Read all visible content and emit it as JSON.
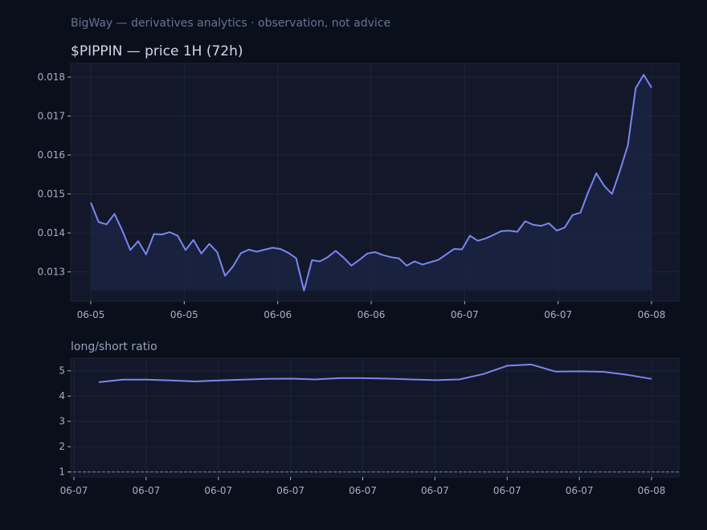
{
  "page_header": "BigWay — derivatives analytics · observation, not advice",
  "colors": {
    "background": "#0a0f1c",
    "panel": "#121829",
    "line": "#7b86f0",
    "fill": "#1b2446",
    "grid": "#1e2538",
    "reference_line": "#7a8098"
  },
  "chart_data": [
    {
      "type": "area",
      "title": "$PIPPIN — price 1H (72h)",
      "xlabel": "",
      "ylabel": "",
      "ylim": [
        0.01225,
        0.01835
      ],
      "yticks": [
        "0.013",
        "0.014",
        "0.015",
        "0.016",
        "0.017",
        "0.018"
      ],
      "xtick_labels": [
        "06-05",
        "06-05",
        "06-06",
        "06-06",
        "06-07",
        "06-07",
        "06-08"
      ],
      "grid": true,
      "series": [
        {
          "values": [
            0.01478,
            0.01428,
            0.01422,
            0.01449,
            0.01406,
            0.01356,
            0.01379,
            0.01345,
            0.01397,
            0.01396,
            0.01402,
            0.01393,
            0.01356,
            0.01382,
            0.01347,
            0.01372,
            0.01351,
            0.0129,
            0.01314,
            0.01348,
            0.01357,
            0.01352,
            0.01357,
            0.01362,
            0.01359,
            0.01349,
            0.01335,
            0.01252,
            0.0133,
            0.01327,
            0.01338,
            0.01354,
            0.01337,
            0.01316,
            0.01331,
            0.01347,
            0.01351,
            0.01343,
            0.01338,
            0.01335,
            0.01316,
            0.01327,
            0.01319,
            0.01325,
            0.01331,
            0.01345,
            0.01359,
            0.01358,
            0.01393,
            0.0138,
            0.01386,
            0.01395,
            0.01405,
            0.01406,
            0.01403,
            0.0143,
            0.01421,
            0.01418,
            0.01425,
            0.01406,
            0.01414,
            0.01446,
            0.01452,
            0.01506,
            0.01553,
            0.01521,
            0.015,
            0.0156,
            0.01625,
            0.01772,
            0.01806,
            0.01773
          ]
        }
      ]
    },
    {
      "type": "line",
      "title": "long/short ratio",
      "xlabel": "",
      "ylabel": "",
      "ylim": [
        0.8,
        5.5
      ],
      "yticks": [
        "1",
        "2",
        "3",
        "4",
        "5"
      ],
      "xtick_labels": [
        "06-07",
        "06-07",
        "06-07",
        "06-07",
        "06-07",
        "06-07",
        "06-07",
        "06-07",
        "06-08"
      ],
      "grid": true,
      "reference_line": 1,
      "series": [
        {
          "values": [
            4.55,
            4.65,
            4.65,
            4.62,
            4.58,
            4.62,
            4.65,
            4.68,
            4.69,
            4.66,
            4.71,
            4.71,
            4.69,
            4.66,
            4.63,
            4.66,
            4.87,
            5.2,
            5.25,
            4.97,
            4.98,
            4.96,
            4.84,
            4.68
          ]
        }
      ]
    }
  ]
}
